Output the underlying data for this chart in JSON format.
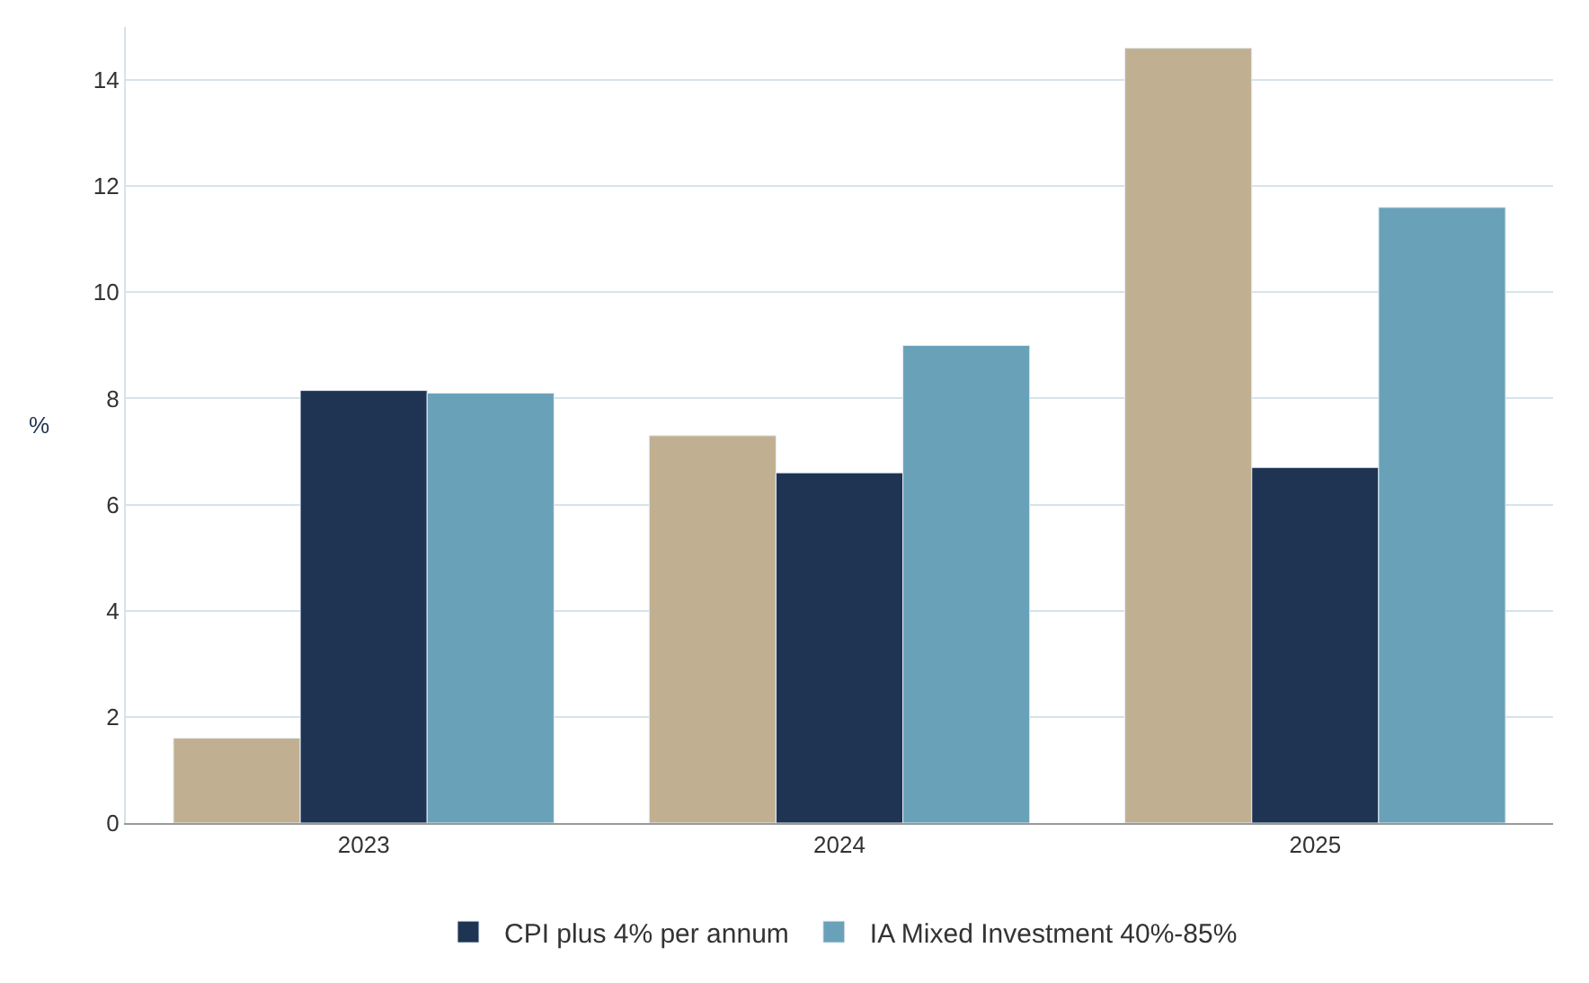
{
  "chart_data": {
    "type": "bar",
    "ylabel": "%",
    "categories": [
      "2023",
      "2024",
      "2025"
    ],
    "series": [
      {
        "color": "#c0b091",
        "values": [
          1.6,
          7.3,
          14.6
        ]
      },
      {
        "name": "CPI plus 4% per annum",
        "color": "#1e3452",
        "values": [
          8.15,
          6.6,
          6.7
        ]
      },
      {
        "name": "IA Mixed Investment 40%-85%",
        "color": "#69a1b8",
        "values": [
          8.1,
          9.0,
          11.6
        ]
      }
    ],
    "ylim": [
      0,
      15
    ],
    "yticks": [
      0,
      2,
      4,
      6,
      8,
      10,
      12,
      14
    ],
    "grid": "y",
    "legend": "bottom"
  }
}
